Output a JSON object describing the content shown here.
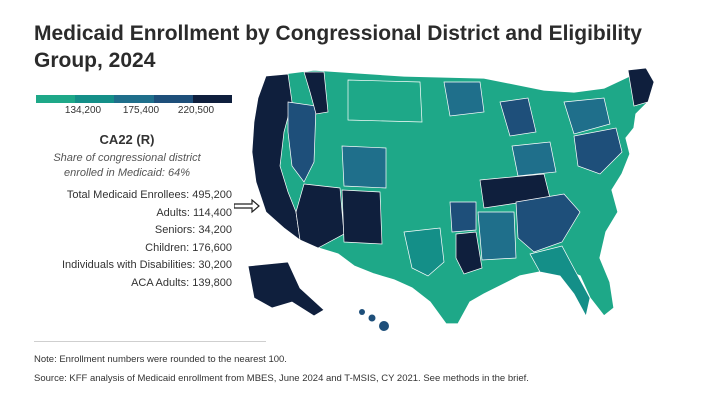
{
  "title": "Medicaid Enrollment by Congressional District and Eligibility Group, 2024",
  "legend": {
    "colors": [
      "#1ea888",
      "#148f88",
      "#1f6f8b",
      "#1e4f7a",
      "#0f1f3d"
    ],
    "ticks": [
      "134,200",
      "175,400",
      "220,500"
    ]
  },
  "tooltip": {
    "district": "CA22 (R)",
    "share_line1": "Share of congressional district",
    "share_line2": "enrolled in Medicaid: 64%",
    "rows": [
      {
        "label": "Total Medicaid Enrollees:",
        "value": "495,200"
      },
      {
        "label": "Adults:",
        "value": "114,400"
      },
      {
        "label": "Seniors:",
        "value": "34,200"
      },
      {
        "label": "Children:",
        "value": "176,600"
      },
      {
        "label": "Individuals with Disabilities:",
        "value": "30,200"
      },
      {
        "label": "ACA Adults:",
        "value": "139,800"
      }
    ]
  },
  "note": "Note: Enrollment numbers were rounded to the nearest 100.",
  "source": "Source: KFF analysis of Medicaid enrollment from MBES, June 2024 and T-MSIS, CY 2021. See methods in the brief."
}
